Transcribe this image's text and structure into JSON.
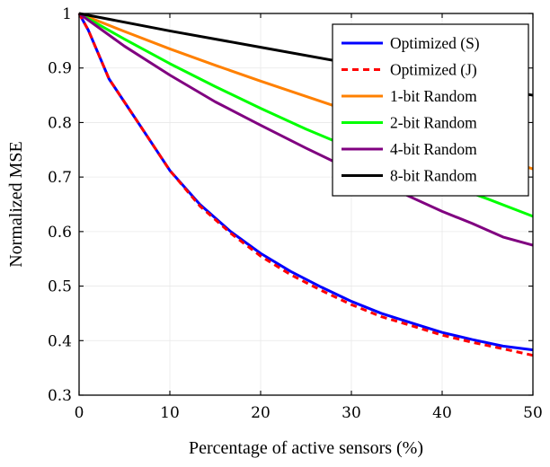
{
  "chart_data": {
    "type": "line",
    "xlabel": "Percentage of active sensors (%)",
    "ylabel": "Normalized MSE",
    "xlim": [
      0,
      50
    ],
    "ylim": [
      0.3,
      1
    ],
    "xticks": [
      0,
      10,
      20,
      30,
      40,
      50
    ],
    "yticks": [
      0.3,
      0.4,
      0.5,
      0.6,
      0.7,
      0.8,
      0.9,
      1
    ],
    "xtick_labels": [
      "0",
      "10",
      "20",
      "30",
      "40",
      "50"
    ],
    "ytick_labels": [
      "0.3",
      "0.4",
      "0.5",
      "0.6",
      "0.7",
      "0.8",
      "0.9",
      "1"
    ],
    "grid": true,
    "legend_position": "top-right",
    "series": [
      {
        "name": "Optimized (S)",
        "color": "#0000ff",
        "dash": "solid",
        "x": [
          0,
          1,
          3.3,
          6.7,
          10,
          13.3,
          16.7,
          20,
          23.3,
          26.7,
          30,
          33.3,
          36.7,
          40,
          43.3,
          46.7,
          50
        ],
        "y": [
          1,
          0.97,
          0.88,
          0.795,
          0.712,
          0.65,
          0.6,
          0.56,
          0.527,
          0.498,
          0.472,
          0.45,
          0.432,
          0.415,
          0.402,
          0.39,
          0.383
        ]
      },
      {
        "name": "Optimized (J)",
        "color": "#ff0000",
        "dash": "dashed",
        "x": [
          0,
          1,
          3.3,
          6.7,
          10,
          13.3,
          16.7,
          20,
          23.3,
          26.7,
          30,
          33.3,
          36.7,
          40,
          43.3,
          46.7,
          50
        ],
        "y": [
          1,
          0.97,
          0.88,
          0.795,
          0.712,
          0.647,
          0.597,
          0.555,
          0.521,
          0.492,
          0.466,
          0.444,
          0.427,
          0.41,
          0.397,
          0.385,
          0.373
        ]
      },
      {
        "name": "1-bit Random",
        "color": "#ff8000",
        "dash": "solid",
        "x": [
          0,
          5,
          10,
          15,
          20,
          25,
          30,
          35,
          40,
          45,
          50
        ],
        "y": [
          1,
          0.967,
          0.935,
          0.905,
          0.876,
          0.848,
          0.82,
          0.793,
          0.766,
          0.74,
          0.715
        ]
      },
      {
        "name": "2-bit Random",
        "color": "#00ff00",
        "dash": "solid",
        "x": [
          0,
          5,
          10,
          15,
          20,
          25,
          30,
          35,
          40,
          45,
          50
        ],
        "y": [
          1,
          0.953,
          0.908,
          0.866,
          0.826,
          0.788,
          0.753,
          0.72,
          0.69,
          0.66,
          0.628
        ]
      },
      {
        "name": "4-bit Random",
        "color": "#800080",
        "dash": "solid",
        "x": [
          0,
          5,
          10,
          15,
          20,
          25,
          30,
          35,
          40,
          43.3,
          46.7,
          50
        ],
        "y": [
          1,
          0.94,
          0.887,
          0.838,
          0.795,
          0.753,
          0.713,
          0.675,
          0.637,
          0.615,
          0.59,
          0.575
        ]
      },
      {
        "name": "8-bit Random",
        "color": "#000000",
        "dash": "solid",
        "x": [
          0,
          10,
          20,
          30,
          40,
          50
        ],
        "y": [
          1,
          0.968,
          0.938,
          0.908,
          0.878,
          0.85
        ]
      }
    ]
  }
}
